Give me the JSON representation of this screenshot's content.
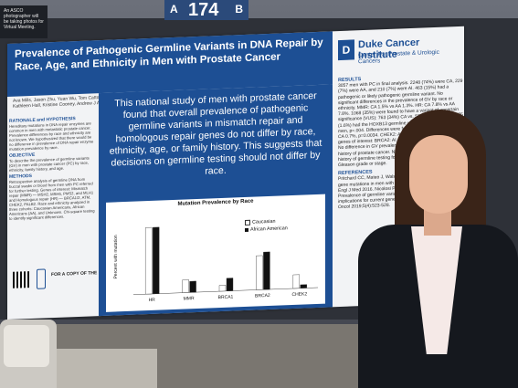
{
  "notice": {
    "text": "An ASCO photographer will be taking photos for Virtual Meeting."
  },
  "board_sign": {
    "left": "A",
    "number": "174",
    "right": "B"
  },
  "poster": {
    "title": "Prevalence of Pathogenic Germline Variants in DNA Repair by Race, Age, and Ethnicity in Men with Prostate Cancer",
    "authors": "Ava Mills, Jason Zhu, Yuan Wu, Tom Catto, Shan Yang, Ed Espin, Robert Nussbaum, Tian Zhang, Megan McNamara, Michael Harrison, Daniel J George, Kathleen Hall, Kristine Cooney, Andrew J Armstrong",
    "logo": {
      "name": "Duke Cancer Institute",
      "sub": "Center For Prostate & Urologic Cancers"
    },
    "left_sections": [
      {
        "heading": "RATIONALE and HYPOTHESIS",
        "text": "Hereditary mutations in DNA repair enzymes are common in men with metastatic prostate cancer. Prevalence differences by race and ethnicity are not known. We hypothesized that there would be no difference in prevalence of DNA repair enzyme mutation prevalence by race."
      },
      {
        "heading": "OBJECTIVE",
        "text": "To describe the prevalence of germline variants (GV) in men with prostate cancer (PC) by race, ethnicity, family history, and age."
      },
      {
        "heading": "METHODS",
        "text": "Retrospective analysis of germline DNA from buccal swabs or blood from men with PC referred for further testing. Genes of interest: Mismatch repair (MMR) — MSH2, MSH6, PMS2, and MLH1 and Homologous repair (HR) — BRCA1/2, ATM, CHEK2, PALB2. Race and ethnicity analyzed in three cohorts: Caucasian Americans, African Americans (AA), and Unknown. Chi-square testing to identify significant differences."
      }
    ],
    "copy_text": "FOR A COPY OF THE POSTER",
    "highlight": "This national study of men with prostate cancer found that overall prevalence of pathogenic germline variants in mismatch repair and homologous repair genes do not differ by race, ethnicity, age, or family history. This suggests that decisions on germline testing should not differ by race.",
    "right_sections": [
      {
        "heading": "RESULTS",
        "text": "3057 men with PC in final analysis. 2248 (74%) were CA, 229 (7%) were AA, and 210 (7%) were AI. 463 (15%) had a pathogenic or likely pathogenic germline variant. No significant differences in the prevalence of GV by race or ethnicity. MMR: CA 1.5% vs AA 1.3%. HR: CA 7.8% vs AA 7.8%. 1068 (35%) were found to have a variant of uncertain significance (VUS): 763 (34%) CA vs. 53 (25%) AI, p=.006. 35 (1.6%) had the HOXB13 germline variant vs. 2 (1%) in AA men, p=.004. Differences were found in: BRCA1: AI 3.3% vs. CA 0.7%, p=0.0034. CHEK2: AI 4.3% vs. CA 1.6%. Other genes of interest: BRCA2: AI 4.3%. ATM 1.9% AI vs 0.3% CA. No difference in GV prevalence by age or self-reported family history of prostate cancer. No association of self-reported history of germline testing found. Limitation: no information on Gleason grade or stage."
      },
      {
        "heading": "REFERENCES",
        "text": "Pritchard CC, Mateo J, Walsh MF et al. Inherited DNA-repair gene mutations in men with metastatic prostate cancer. N Engl J Med 2016. Nicolosi P, Ledet E, Yang S, et al. Prevalence of germline variants in prostate cancer and implications for current genetic testing guidelines. JAMA Oncol 2019;5(4):523-528."
      }
    ]
  },
  "chart_data": {
    "type": "bar",
    "title": "Mutation Prevalence by Race",
    "xlabel": "",
    "ylabel": "Percent with mutation",
    "categories": [
      "HR",
      "MMR",
      "BRCA1",
      "BRCA2",
      "CHEK2"
    ],
    "series": [
      {
        "name": "Caucasian",
        "color": "#ffffff",
        "values": [
          7.8,
          1.5,
          0.7,
          4.0,
          1.6
        ]
      },
      {
        "name": "African American",
        "color": "#111111",
        "values": [
          7.8,
          1.3,
          1.5,
          4.4,
          0.4
        ]
      }
    ],
    "ylim": [
      0,
      9
    ],
    "legend": "top-right"
  }
}
